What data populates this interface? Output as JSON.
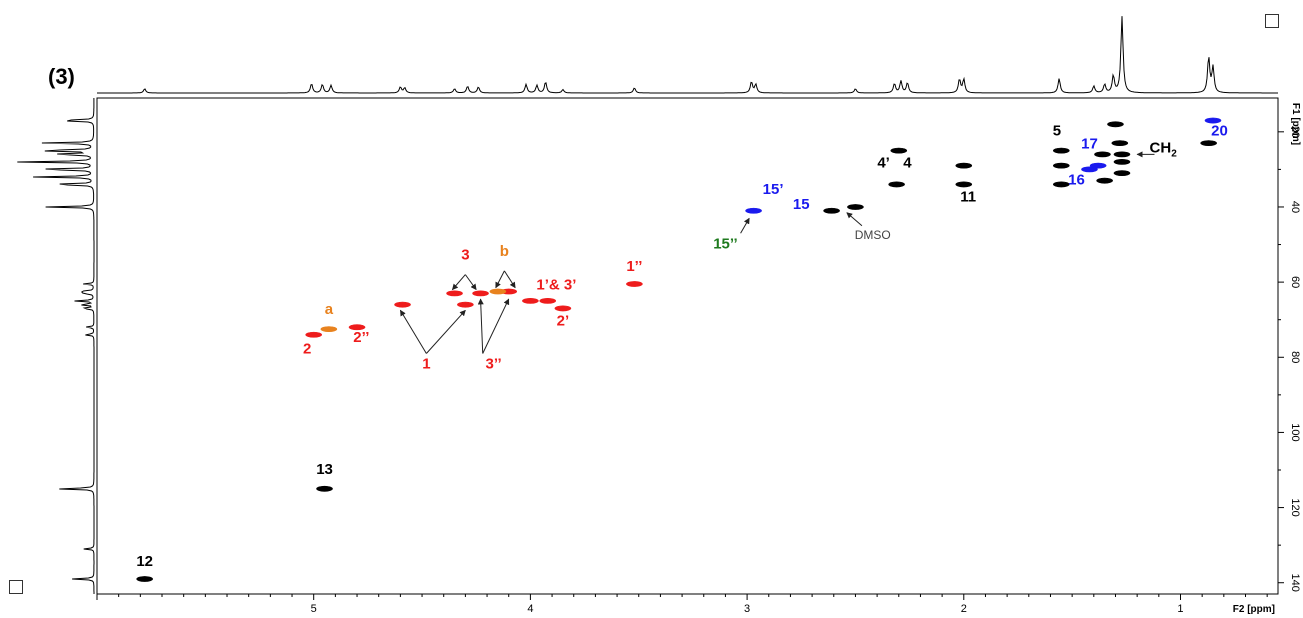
{
  "figure_label": "(3)",
  "chart_data": {
    "type": "scatter",
    "subtype": "2D NMR HSQC spectrum",
    "xlabel": "F2 [ppm]",
    "ylabel": "F1 [ppm]",
    "xlim": [
      6.0,
      0.55
    ],
    "ylim": [
      11,
      143
    ],
    "x_axis_reversed": true,
    "y_axis_reversed": true,
    "x_ticks": [
      5,
      4,
      3,
      2,
      1
    ],
    "y_ticks": [
      20,
      40,
      60,
      80,
      100,
      120,
      140
    ],
    "colors": {
      "black": "#000000",
      "red": "#ee1c1c",
      "blue": "#1a1aee",
      "orange": "#e8821e",
      "green": "#1e7a1e",
      "gray": "#444444"
    },
    "series": [
      {
        "color": "black",
        "points": [
          [
            5.78,
            139
          ],
          [
            4.95,
            115
          ],
          [
            2.31,
            34
          ],
          [
            2.0,
            34
          ],
          [
            2.0,
            29
          ],
          [
            1.55,
            25
          ],
          [
            1.36,
            26
          ],
          [
            1.28,
            23
          ],
          [
            1.27,
            26
          ],
          [
            1.27,
            28
          ],
          [
            1.27,
            31
          ],
          [
            1.3,
            18
          ],
          [
            0.87,
            23
          ],
          [
            2.3,
            25
          ],
          [
            1.55,
            29
          ],
          [
            1.55,
            34
          ],
          [
            1.35,
            33
          ],
          [
            2.5,
            40
          ],
          [
            2.61,
            41
          ]
        ]
      },
      {
        "color": "red",
        "points": [
          [
            5.0,
            74
          ],
          [
            4.8,
            72
          ],
          [
            4.59,
            66
          ],
          [
            4.35,
            63
          ],
          [
            4.3,
            66
          ],
          [
            4.23,
            63
          ],
          [
            4.1,
            62.5
          ],
          [
            4.0,
            65
          ],
          [
            3.92,
            65
          ],
          [
            3.85,
            67
          ],
          [
            3.52,
            60.5
          ]
        ]
      },
      {
        "color": "orange",
        "points": [
          [
            4.93,
            72.5
          ],
          [
            4.15,
            62.5
          ]
        ]
      },
      {
        "color": "blue",
        "points": [
          [
            2.97,
            41
          ],
          [
            1.42,
            30
          ],
          [
            1.38,
            29
          ],
          [
            0.85,
            17
          ]
        ]
      }
    ],
    "annotations": [
      {
        "text": "12",
        "color": "black",
        "x": 5.78,
        "y": 135.5
      },
      {
        "text": "13",
        "color": "black",
        "x": 4.95,
        "y": 111
      },
      {
        "text": "a",
        "color": "orange",
        "x": 4.93,
        "y": 68.5
      },
      {
        "text": "2",
        "color": "red",
        "x": 5.03,
        "y": 79
      },
      {
        "text": "2’’",
        "color": "red",
        "x": 4.78,
        "y": 76
      },
      {
        "text": "1",
        "color": "red",
        "x": 4.48,
        "y": 83
      },
      {
        "text": "3",
        "color": "red",
        "x": 4.3,
        "y": 54
      },
      {
        "text": "b",
        "color": "orange",
        "x": 4.12,
        "y": 53
      },
      {
        "text": "3’’",
        "color": "red",
        "x": 4.17,
        "y": 83
      },
      {
        "text": "1’& 3’",
        "color": "red",
        "x": 3.88,
        "y": 62
      },
      {
        "text": "2’",
        "color": "red",
        "x": 3.85,
        "y": 71.5
      },
      {
        "text": "1’’",
        "color": "red",
        "x": 3.52,
        "y": 57
      },
      {
        "text": "15’’",
        "color": "green",
        "x": 3.1,
        "y": 51
      },
      {
        "text": "15’",
        "color": "blue",
        "x": 2.88,
        "y": 36.5
      },
      {
        "text": "15",
        "color": "blue",
        "x": 2.75,
        "y": 40.5
      },
      {
        "text": "DMSO",
        "color": "gray",
        "x": 2.42,
        "y": 48.5
      },
      {
        "text": "4’",
        "color": "black",
        "x": 2.37,
        "y": 29.5
      },
      {
        "text": "4",
        "color": "black",
        "x": 2.26,
        "y": 29.5
      },
      {
        "text": "11",
        "color": "black",
        "x": 1.98,
        "y": 38.5
      },
      {
        "text": "5",
        "color": "black",
        "x": 1.57,
        "y": 21
      },
      {
        "text": "17",
        "color": "blue",
        "x": 1.42,
        "y": 24.5
      },
      {
        "text": "16",
        "color": "blue",
        "x": 1.48,
        "y": 34
      },
      {
        "text": "CH2",
        "color": "black",
        "x": 1.08,
        "y": 25.5
      },
      {
        "text": "20",
        "color": "blue",
        "x": 0.82,
        "y": 21
      }
    ],
    "arrows": [
      {
        "from": [
          4.48,
          79
        ],
        "to": [
          4.6,
          67.5
        ]
      },
      {
        "from": [
          4.48,
          79
        ],
        "to": [
          4.3,
          67.5
        ]
      },
      {
        "from": [
          4.3,
          58
        ],
        "to": [
          4.36,
          62
        ]
      },
      {
        "from": [
          4.3,
          58
        ],
        "to": [
          4.25,
          62
        ]
      },
      {
        "from": [
          4.12,
          57
        ],
        "to": [
          4.16,
          61.5
        ]
      },
      {
        "from": [
          4.12,
          57
        ],
        "to": [
          4.07,
          61.5
        ]
      },
      {
        "from": [
          4.22,
          79
        ],
        "to": [
          4.23,
          64.5
        ]
      },
      {
        "from": [
          4.22,
          79
        ],
        "to": [
          4.1,
          64.5
        ]
      },
      {
        "from": [
          3.03,
          47
        ],
        "to": [
          2.99,
          43
        ]
      },
      {
        "from": [
          2.47,
          45
        ],
        "to": [
          2.54,
          41.5
        ]
      },
      {
        "from": [
          1.12,
          26
        ],
        "to": [
          1.2,
          26
        ]
      }
    ],
    "f2_projection_peaks": [
      [
        5.78,
        0.05
      ],
      [
        5.01,
        0.11
      ],
      [
        4.96,
        0.1
      ],
      [
        4.92,
        0.09
      ],
      [
        4.6,
        0.07
      ],
      [
        4.58,
        0.06
      ],
      [
        4.35,
        0.05
      ],
      [
        4.29,
        0.08
      ],
      [
        4.24,
        0.07
      ],
      [
        4.02,
        0.1
      ],
      [
        3.97,
        0.09
      ],
      [
        3.93,
        0.13
      ],
      [
        3.85,
        0.04
      ],
      [
        3.52,
        0.06
      ],
      [
        2.98,
        0.13
      ],
      [
        2.96,
        0.1
      ],
      [
        2.5,
        0.05
      ],
      [
        2.32,
        0.11
      ],
      [
        2.29,
        0.14
      ],
      [
        2.26,
        0.12
      ],
      [
        2.02,
        0.16
      ],
      [
        2.0,
        0.16
      ],
      [
        1.56,
        0.17
      ],
      [
        1.4,
        0.08
      ],
      [
        1.35,
        0.1
      ],
      [
        1.31,
        0.2
      ],
      [
        1.27,
        0.9
      ],
      [
        0.87,
        0.42
      ],
      [
        0.85,
        0.3
      ]
    ],
    "f1_projection_peaks": [
      [
        17,
        0.5
      ],
      [
        23,
        0.6
      ],
      [
        25,
        0.8
      ],
      [
        26,
        0.55
      ],
      [
        28,
        0.9
      ],
      [
        30,
        0.8
      ],
      [
        32,
        0.7
      ],
      [
        34,
        0.6
      ],
      [
        40,
        0.55
      ],
      [
        60.5,
        0.12
      ],
      [
        62.5,
        0.2
      ],
      [
        63,
        0.15
      ],
      [
        65,
        0.22
      ],
      [
        66,
        0.18
      ],
      [
        67,
        0.16
      ],
      [
        72,
        0.1
      ],
      [
        74,
        0.12
      ],
      [
        115,
        0.45
      ],
      [
        131,
        0.12
      ],
      [
        139,
        0.25
      ]
    ]
  }
}
